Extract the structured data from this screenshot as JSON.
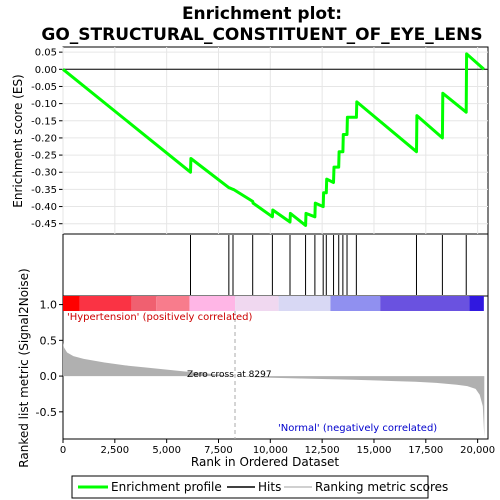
{
  "chart_data": [
    {
      "type": "line",
      "title": "Enrichment plot:\nGO_STRUCTURAL_CONSTITUENT_OF_EYE_LENS",
      "title_lines": [
        "Enrichment plot:",
        "GO_STRUCTURAL_CONSTITUENT_OF_EYE_LENS"
      ],
      "ylabel": "Enrichment score (ES)",
      "ylim": [
        -0.48,
        0.065
      ],
      "xlim": [
        0,
        20500
      ],
      "yticks": [
        0.05,
        0.0,
        -0.05,
        -0.1,
        -0.15,
        -0.2,
        -0.25,
        -0.3,
        -0.35,
        -0.4,
        -0.45
      ],
      "ytick_labels": [
        "0.05",
        "0.00",
        "-0.05",
        "-0.10",
        "-0.15",
        "-0.20",
        "-0.25",
        "-0.30",
        "-0.35",
        "-0.40",
        "-0.45"
      ],
      "grid": true,
      "series": [
        {
          "name": "Enrichment profile",
          "color": "#00ff00",
          "x": [
            0,
            6150,
            6170,
            8000,
            8020,
            8200,
            8220,
            9150,
            9170,
            10100,
            10120,
            10950,
            10970,
            11700,
            11720,
            12150,
            12170,
            12550,
            12570,
            12700,
            12720,
            13050,
            13070,
            13300,
            13320,
            13500,
            13520,
            13700,
            13720,
            14150,
            14170,
            17050,
            17070,
            18300,
            18320,
            19450,
            19470,
            20300
          ],
          "y": [
            0.0,
            -0.3,
            -0.26,
            -0.345,
            -0.345,
            -0.35,
            -0.35,
            -0.385,
            -0.39,
            -0.43,
            -0.41,
            -0.445,
            -0.42,
            -0.455,
            -0.42,
            -0.43,
            -0.39,
            -0.4,
            -0.36,
            -0.36,
            -0.32,
            -0.33,
            -0.285,
            -0.285,
            -0.24,
            -0.24,
            -0.19,
            -0.19,
            -0.14,
            -0.14,
            -0.095,
            -0.24,
            -0.135,
            -0.2,
            -0.07,
            -0.125,
            0.045,
            0.0
          ]
        }
      ]
    },
    {
      "type": "hits",
      "series_name": "Hits",
      "hit_positions": [
        6150,
        8000,
        8200,
        9150,
        10100,
        10950,
        11700,
        12150,
        12550,
        12700,
        13050,
        13300,
        13500,
        13700,
        14150,
        17050,
        18300,
        19450
      ],
      "heat_colors": [
        "#ff0000",
        "#fa3344",
        "#f06070",
        "#f87c8c",
        "#ffb6e6",
        "#f0d8f0",
        "#d8d8f4",
        "#9090f0",
        "#6a52e0",
        "#3018e0",
        "#0000e0"
      ],
      "heat_stops": [
        0,
        800,
        3300,
        4500,
        6100,
        8300,
        10400,
        12900,
        15300,
        19600,
        20300
      ]
    },
    {
      "type": "area",
      "ylabel": "Ranked list metric (Signal2Noise)",
      "xlabel": "Rank in Ordered Dataset",
      "ylim": [
        -0.88,
        1.12
      ],
      "xlim": [
        0,
        20500
      ],
      "yticks": [
        1.0,
        0.5,
        0.0,
        -0.5
      ],
      "ytick_labels": [
        "1.0",
        "0.5",
        "0.0",
        "-0.5"
      ],
      "xticks": [
        0,
        2500,
        5000,
        7500,
        10000,
        12500,
        15000,
        17500,
        20000
      ],
      "xtick_labels": [
        "0",
        "2,500",
        "5,000",
        "7,500",
        "10,000",
        "12,500",
        "15,000",
        "17,500",
        "20,000"
      ],
      "zero_cross": 8297,
      "annotations": {
        "positive": "'Hypertension' (positively correlated)",
        "zero": "Zero cross at 8297",
        "negative": "'Normal' (negatively correlated)"
      },
      "series": [
        {
          "name": "Ranking metric scores",
          "color": "#b0b0b0",
          "x": [
            0,
            50,
            200,
            500,
            1000,
            2000,
            3000,
            4000,
            5000,
            6000,
            7000,
            8297,
            9000,
            10000,
            11000,
            12000,
            13000,
            14000,
            15000,
            16000,
            17000,
            18000,
            19000,
            19500,
            19900,
            20100,
            20250,
            20320
          ],
          "y": [
            0.47,
            0.4,
            0.33,
            0.28,
            0.24,
            0.19,
            0.15,
            0.12,
            0.09,
            0.06,
            0.035,
            0.0,
            -0.012,
            -0.022,
            -0.03,
            -0.038,
            -0.045,
            -0.052,
            -0.06,
            -0.07,
            -0.08,
            -0.095,
            -0.12,
            -0.14,
            -0.18,
            -0.26,
            -0.42,
            -0.85
          ]
        }
      ]
    }
  ],
  "legend": {
    "items": [
      {
        "label": "Enrichment profile",
        "color": "#00ff00"
      },
      {
        "label": "Hits",
        "color": "#000000"
      },
      {
        "label": "Ranking metric scores",
        "color": "#c0c0c0"
      }
    ]
  }
}
